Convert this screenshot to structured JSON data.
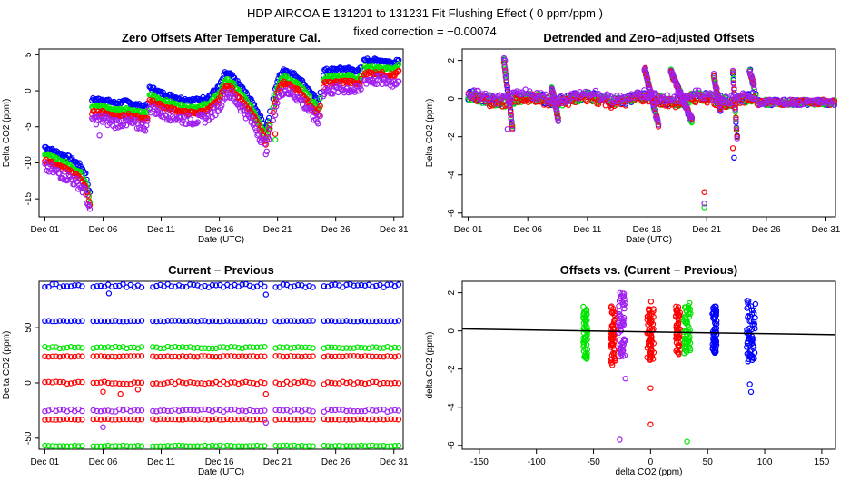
{
  "header": {
    "title": "HDP    AIRCOA E    131201 to 131231    Fit Flushing Effect ( 0 ppm/ppm )",
    "subtitle": "fixed correction = −0.00074"
  },
  "colors": {
    "blue": "#0000ff",
    "green": "#00e600",
    "red": "#ff0000",
    "purple": "#a020f0",
    "fit": "#000000"
  },
  "series_names": [
    "blue",
    "green",
    "red",
    "purple"
  ],
  "chart_data": [
    {
      "id": "zero",
      "type": "scatter",
      "title": "Zero Offsets After Temperature Cal.",
      "xlabel": "Date (UTC)",
      "ylabel": "Delta CO2 (ppm)",
      "xlim": [
        0.5,
        31.8
      ],
      "ylim": [
        -17.5,
        5.8
      ],
      "xtick_values": [
        1,
        6,
        11,
        16,
        21,
        26,
        31
      ],
      "xtick_labels": [
        "Dec 01",
        "Dec 06",
        "Dec 11",
        "Dec 16",
        "Dec 21",
        "Dec 26",
        "Dec 31"
      ],
      "ytick_values": [
        -15,
        -10,
        -5,
        0,
        5
      ],
      "ytick_labels": [
        "-15",
        "-10",
        "-5",
        "0",
        "5"
      ],
      "base_curve": [
        [
          1.0,
          -7.8
        ],
        [
          2.0,
          -8.5
        ],
        [
          3.0,
          -9.2
        ],
        [
          4.0,
          -10.3
        ],
        [
          4.5,
          -11.5
        ],
        [
          4.9,
          -14.5
        ],
        [
          5.0,
          -1.2
        ],
        [
          6.0,
          -1.2
        ],
        [
          7.0,
          -1.7
        ],
        [
          8.0,
          -1.5
        ],
        [
          9.0,
          -2.0
        ],
        [
          9.8,
          -2.2
        ],
        [
          10.0,
          0.5
        ],
        [
          11.0,
          -0.3
        ],
        [
          12.0,
          -0.8
        ],
        [
          13.0,
          -1.2
        ],
        [
          14.0,
          -1.3
        ],
        [
          15.0,
          -0.9
        ],
        [
          16.0,
          0.6
        ],
        [
          16.5,
          2.5
        ],
        [
          17.0,
          2.2
        ],
        [
          18.0,
          0.3
        ],
        [
          19.0,
          -2.0
        ],
        [
          19.8,
          -4.5
        ],
        [
          20.0,
          -5.5
        ],
        [
          21.0,
          1.5
        ],
        [
          21.5,
          3.0
        ],
        [
          22.5,
          2.2
        ],
        [
          23.0,
          1.5
        ],
        [
          24.0,
          -0.5
        ],
        [
          24.5,
          -1.6
        ],
        [
          25.0,
          2.8
        ],
        [
          27.0,
          3.1
        ],
        [
          28.0,
          2.7
        ],
        [
          28.5,
          4.3
        ],
        [
          30.0,
          4.2
        ],
        [
          31.0,
          3.9
        ],
        [
          31.5,
          4.6
        ]
      ],
      "offsets": [
        0,
        -1.0,
        -1.8,
        -2.8
      ],
      "segment_breaks": [
        4.95,
        9.9,
        20.5,
        24.8,
        28.3
      ],
      "outliers": [
        [
          5.7,
          -6.2,
          "purple"
        ],
        [
          8.0,
          -4.8,
          "purple"
        ],
        [
          20.8,
          -6.0,
          "red"
        ],
        [
          20.8,
          -6.8,
          "green"
        ]
      ]
    },
    {
      "id": "detrended",
      "type": "scatter",
      "title": "Detrended and Zero−adjusted Offsets",
      "xlabel": "Date (UTC)",
      "ylabel": "Delta CO2 (ppm)",
      "xlim": [
        0.5,
        31.8
      ],
      "ylim": [
        -6.2,
        2.6
      ],
      "xtick_values": [
        1,
        6,
        11,
        16,
        21,
        26,
        31
      ],
      "xtick_labels": [
        "Dec 01",
        "Dec 06",
        "Dec 11",
        "Dec 16",
        "Dec 21",
        "Dec 26",
        "Dec 31"
      ],
      "ytick_values": [
        -6,
        -4,
        -2,
        0,
        2
      ],
      "ytick_labels": [
        "-6",
        "-4",
        "-2",
        "0",
        "2"
      ],
      "outliers": [
        [
          4.1,
          2.0,
          "purple"
        ],
        [
          4.3,
          -1.6,
          "purple"
        ],
        [
          20.8,
          -4.9,
          "red"
        ],
        [
          20.8,
          -5.7,
          "green"
        ],
        [
          20.8,
          -5.5,
          "purple"
        ],
        [
          23.3,
          -3.1,
          "blue"
        ],
        [
          23.2,
          -2.6,
          "red"
        ]
      ]
    },
    {
      "id": "current",
      "type": "scatter",
      "title": "Current − Previous",
      "xlabel": "Date (UTC)",
      "ylabel": "Delta CO2 (ppm)",
      "xlim": [
        0.5,
        31.8
      ],
      "ylim": [
        -60,
        92
      ],
      "xtick_values": [
        1,
        6,
        11,
        16,
        21,
        26,
        31
      ],
      "xtick_labels": [
        "Dec 01",
        "Dec 06",
        "Dec 11",
        "Dec 16",
        "Dec 21",
        "Dec 26",
        "Dec 31"
      ],
      "ytick_values": [
        -50,
        0,
        50
      ],
      "ytick_labels": [
        "-50",
        "0",
        "50"
      ],
      "bands": [
        {
          "series": "blue",
          "y": 88,
          "noise": 1.5
        },
        {
          "series": "blue",
          "y": 56,
          "noise": 0.3
        },
        {
          "series": "green",
          "y": 32,
          "noise": 0.8
        },
        {
          "series": "red",
          "y": 24,
          "noise": 0.4
        },
        {
          "series": "red",
          "y": 0,
          "noise": 1.2
        },
        {
          "series": "purple",
          "y": -25,
          "noise": 1.2
        },
        {
          "series": "red",
          "y": -33,
          "noise": 0.4
        },
        {
          "series": "green",
          "y": -57,
          "noise": 0.4
        }
      ]
    },
    {
      "id": "offsets_vs",
      "type": "scatter",
      "title": "Offsets vs. (Current − Previous)",
      "xlabel": "delta CO2 (ppm)",
      "ylabel": "delta CO2 (ppm)",
      "xlim": [
        -165,
        162
      ],
      "ylim": [
        -6.2,
        2.6
      ],
      "xtick_values": [
        -150,
        -100,
        -50,
        0,
        50,
        100,
        150
      ],
      "xtick_labels": [
        "-150",
        "-100",
        "-50",
        "0",
        "50",
        "100",
        "150"
      ],
      "ytick_values": [
        -6,
        -4,
        -2,
        0,
        2
      ],
      "ytick_labels": [
        "-6",
        "-4",
        "-2",
        "0",
        "2"
      ],
      "clusters": [
        {
          "series": "green",
          "x": -57,
          "spread": 2,
          "ymin": -1.6,
          "ymax": 1.3
        },
        {
          "series": "red",
          "x": -33,
          "spread": 2,
          "ymin": -1.8,
          "ymax": 1.3
        },
        {
          "series": "purple",
          "x": -25,
          "spread": 3,
          "ymin": -1.4,
          "ymax": 2.0
        },
        {
          "series": "red",
          "x": 0,
          "spread": 3,
          "ymin": -1.6,
          "ymax": 1.6
        },
        {
          "series": "red",
          "x": 24,
          "spread": 2,
          "ymin": -1.3,
          "ymax": 1.3
        },
        {
          "series": "green",
          "x": 32,
          "spread": 3,
          "ymin": -1.2,
          "ymax": 1.5
        },
        {
          "series": "blue",
          "x": 56,
          "spread": 2,
          "ymin": -1.2,
          "ymax": 1.3
        },
        {
          "series": "blue",
          "x": 88,
          "spread": 4,
          "ymin": -1.6,
          "ymax": 1.6
        }
      ],
      "outliers": [
        [
          -27,
          -5.7,
          "purple"
        ],
        [
          0,
          -4.9,
          "red"
        ],
        [
          32,
          -5.8,
          "green"
        ],
        [
          88,
          -3.2,
          "blue"
        ],
        [
          87,
          -2.8,
          "blue"
        ],
        [
          0,
          -3.0,
          "red"
        ],
        [
          -22,
          -2.5,
          "purple"
        ]
      ],
      "fit_line": {
        "slope": -0.00074,
        "intercept": 0.0
      }
    }
  ]
}
